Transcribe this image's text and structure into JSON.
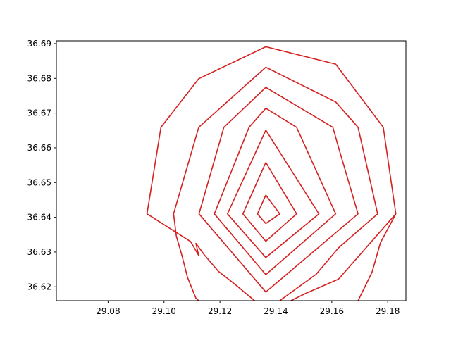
{
  "chart_data": {
    "type": "line",
    "title": "",
    "xlabel": "",
    "ylabel": "",
    "xlim": [
      29.0615,
      29.1865
    ],
    "ylim": [
      36.616,
      36.6908
    ],
    "grid": false,
    "legend": "none",
    "line_color": "#d62020",
    "x_ticks": [
      {
        "value": 29.08,
        "label": "29.08"
      },
      {
        "value": 29.1,
        "label": "29.10"
      },
      {
        "value": 29.12,
        "label": "29.12"
      },
      {
        "value": 29.14,
        "label": "29.14"
      },
      {
        "value": 29.16,
        "label": "29.16"
      },
      {
        "value": 29.18,
        "label": "29.18"
      }
    ],
    "y_ticks": [
      {
        "value": 36.62,
        "label": "36.62"
      },
      {
        "value": 36.63,
        "label": "36.63"
      },
      {
        "value": 36.64,
        "label": "36.64"
      },
      {
        "value": 36.65,
        "label": "36.65"
      },
      {
        "value": 36.66,
        "label": "36.66"
      },
      {
        "value": 36.67,
        "label": "36.67"
      },
      {
        "value": 36.68,
        "label": "36.68"
      },
      {
        "value": 36.69,
        "label": "36.69"
      }
    ],
    "contours": [
      {
        "points": [
          [
            29.1364,
            36.6464
          ],
          [
            29.1414,
            36.641
          ],
          [
            29.1364,
            36.6382
          ],
          [
            29.1334,
            36.641
          ],
          [
            29.1364,
            36.6464
          ]
        ]
      },
      {
        "points": [
          [
            29.1364,
            36.6558
          ],
          [
            29.1474,
            36.641
          ],
          [
            29.1364,
            36.6331
          ],
          [
            29.1282,
            36.641
          ],
          [
            29.1364,
            36.6558
          ]
        ]
      },
      {
        "points": [
          [
            29.1364,
            36.6651
          ],
          [
            29.1554,
            36.641
          ],
          [
            29.1364,
            36.6284
          ],
          [
            29.1227,
            36.641
          ],
          [
            29.1364,
            36.6651
          ]
        ]
      },
      {
        "points": [
          [
            29.1364,
            36.6714
          ],
          [
            29.1474,
            36.6659
          ],
          [
            29.1614,
            36.641
          ],
          [
            29.1364,
            36.6235
          ],
          [
            29.118,
            36.641
          ],
          [
            29.1304,
            36.6659
          ],
          [
            29.1364,
            36.6714
          ]
        ]
      },
      {
        "points": [
          [
            29.1364,
            36.6774
          ],
          [
            29.1604,
            36.6659
          ],
          [
            29.1624,
            36.6601
          ],
          [
            29.1694,
            36.641
          ],
          [
            29.1364,
            36.6185
          ],
          [
            29.1125,
            36.641
          ],
          [
            29.1214,
            36.6659
          ],
          [
            29.1364,
            36.6774
          ]
        ]
      },
      {
        "points": [
          [
            29.1364,
            36.6832
          ],
          [
            29.1614,
            36.6732
          ],
          [
            29.1694,
            36.6659
          ],
          [
            29.1764,
            36.641
          ],
          [
            29.1624,
            36.6312
          ],
          [
            29.1544,
            36.6236
          ],
          [
            29.1414,
            36.616
          ]
        ]
      },
      {
        "points": [
          [
            29.1124,
            36.616
          ],
          [
            29.1114,
            36.6167
          ],
          [
            29.1084,
            36.6227
          ],
          [
            29.1064,
            36.629
          ],
          [
            29.1044,
            36.6346
          ],
          [
            29.1034,
            36.641
          ],
          [
            29.1124,
            36.6659
          ],
          [
            29.1364,
            36.6832
          ]
        ]
      },
      {
        "points": [
          [
            29.1364,
            36.6891
          ],
          [
            29.1614,
            36.6841
          ],
          [
            29.1784,
            36.6659
          ],
          [
            29.1829,
            36.641
          ],
          [
            29.1624,
            36.6222
          ],
          [
            29.1504,
            36.618
          ],
          [
            29.1454,
            36.616
          ]
        ]
      },
      {
        "points": [
          [
            29.1324,
            36.616
          ],
          [
            29.1249,
            36.621
          ],
          [
            29.1194,
            36.6245
          ],
          [
            29.1144,
            36.6292
          ],
          [
            29.1114,
            36.6325
          ],
          [
            29.1124,
            36.629
          ],
          [
            29.1095,
            36.633
          ],
          [
            29.0939,
            36.641
          ],
          [
            29.0989,
            36.6659
          ],
          [
            29.1124,
            36.6799
          ],
          [
            29.1364,
            36.6891
          ]
        ]
      },
      {
        "points": [
          [
            29.1694,
            36.616
          ],
          [
            29.1744,
            36.6242
          ],
          [
            29.1774,
            36.6327
          ],
          [
            29.1829,
            36.641
          ]
        ]
      }
    ]
  }
}
